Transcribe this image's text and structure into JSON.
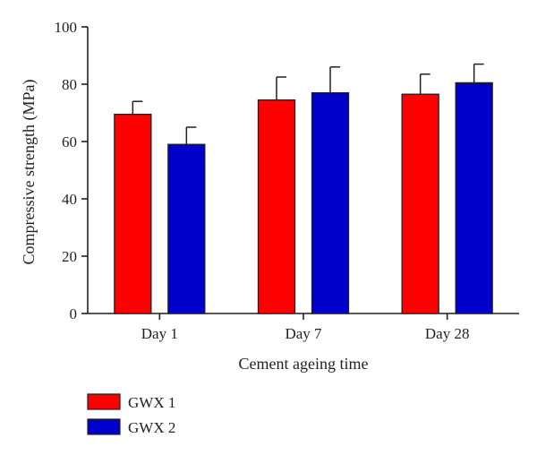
{
  "chart_data": {
    "type": "bar",
    "xlabel": "Cement ageing time",
    "ylabel": "Compressive strength (MPa)",
    "ylim": [
      0,
      100
    ],
    "yticks": [
      0,
      20,
      40,
      60,
      80,
      100
    ],
    "categories": [
      "Day 1",
      "Day 7",
      "Day 28"
    ],
    "series": [
      {
        "name": "GWX 1",
        "color": "#ff0000",
        "values": [
          69.5,
          74.5,
          76.5
        ],
        "errors": [
          4.5,
          8.0,
          7.0
        ]
      },
      {
        "name": "GWX 2",
        "color": "#0000cc",
        "values": [
          59.0,
          77.0,
          80.5
        ],
        "errors": [
          6.0,
          9.0,
          6.5
        ]
      }
    ],
    "grid": false,
    "legend_position": "bottom-left",
    "error_bars": "upper"
  }
}
